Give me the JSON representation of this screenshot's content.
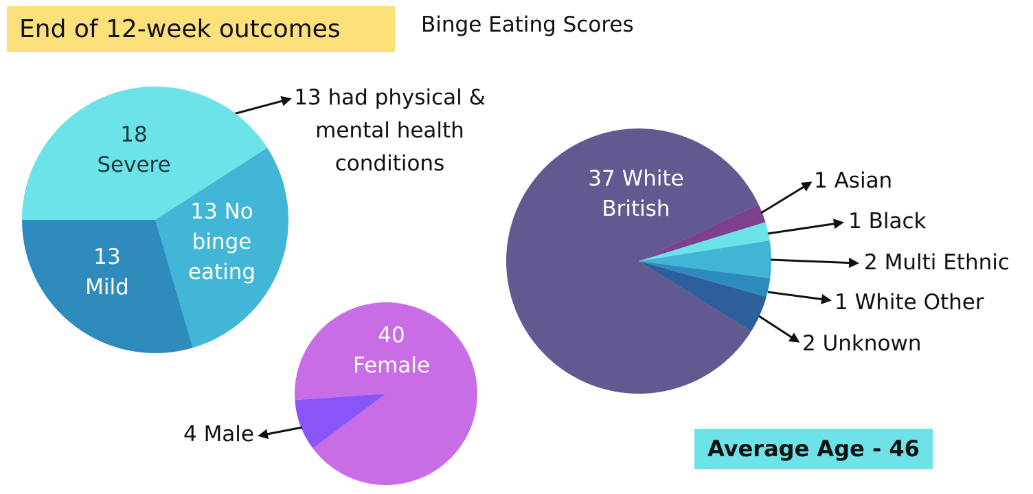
{
  "title": "End of 12-week outcomes",
  "subtitle": "Binge Eating Scores",
  "annotation": "13 had physical & mental health conditions",
  "average_age": "Average Age - 46",
  "chart_data": [
    {
      "type": "pie",
      "categories": [
        "Severe",
        "No binge eating",
        "Mild"
      ],
      "values": [
        18,
        13,
        13
      ],
      "colors": [
        "#6be3e8",
        "#41b6d6",
        "#2f8bbc"
      ]
    },
    {
      "type": "pie",
      "categories": [
        "Female",
        "Male"
      ],
      "values": [
        40,
        4
      ],
      "colors": [
        "#c96de6",
        "#8a55f7"
      ]
    },
    {
      "type": "pie",
      "categories": [
        "White British",
        "Asian",
        "Black",
        "Multi Ethnic",
        "White Other",
        "Unknown"
      ],
      "values": [
        37,
        1,
        1,
        2,
        1,
        2
      ],
      "colors": [
        "#625990",
        "#7e3f8c",
        "#6ae3e8",
        "#40b5d5",
        "#2e8bbd",
        "#2d5f9a"
      ]
    }
  ]
}
